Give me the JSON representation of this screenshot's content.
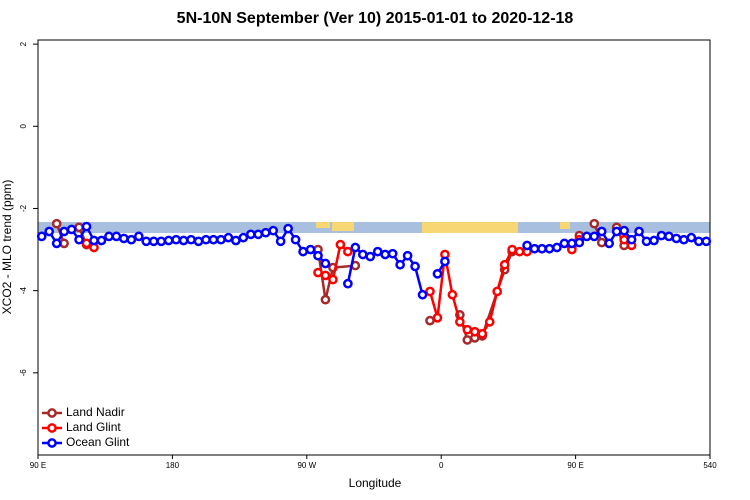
{
  "chart_data": {
    "type": "line",
    "title": "5N-10N September (Ver 10)   2015-01-01 to 2020-12-18",
    "x_label": "Longitude",
    "y_label": "XCO2 - MLO trend (ppm)",
    "xlim": [
      90,
      540
    ],
    "ylim": [
      -8,
      2.1
    ],
    "xticks": [
      {
        "value": 90,
        "label": "90 E"
      },
      180,
      {
        "value": 270,
        "label": "90 W"
      },
      {
        "value": 360,
        "label": "0"
      },
      {
        "value": 450,
        "label": "90 E"
      },
      540
    ],
    "yticks": [
      2,
      0,
      -2,
      -4,
      -6
    ],
    "legend_position": "bottomleft",
    "series": [
      {
        "name": "Land Nadir",
        "color": "#a52a2a",
        "x": [
          102.5,
          107.5,
          112.5,
          117.5,
          122.5,
          272.5,
          277.5,
          282.5,
          287.5,
          302.5,
          347.5,
          352.5,
          367.5,
          372.5,
          377.5,
          382.5,
          387.5,
          402.5,
          407.5,
          442.5,
          447.5,
          452.5,
          457.5,
          462.5,
          467.5,
          472.5,
          477.5,
          482.5
        ],
        "values": [
          -2.37,
          -2.85,
          null,
          -2.46,
          -2.88,
          null,
          -3.0,
          -4.22,
          -3.44,
          -3.39,
          null,
          -4.73,
          null,
          -4.59,
          -5.2,
          -5.15,
          -5.1,
          -3.49,
          -3.05,
          null,
          -2.95,
          -2.66,
          null,
          -2.37,
          -2.83,
          null,
          -2.46,
          -2.9
        ]
      },
      {
        "name": "Land Glint",
        "color": "#ff0000",
        "x": [
          122.5,
          127.5,
          272.5,
          277.5,
          282.5,
          287.5,
          292.5,
          297.5,
          347.5,
          352.5,
          357.5,
          362.5,
          367.5,
          372.5,
          377.5,
          382.5,
          387.5,
          392.5,
          397.5,
          402.5,
          407.5,
          412.5,
          417.5,
          442.5,
          447.5,
          452.5,
          477.5,
          482.5,
          487.5
        ],
        "values": [
          -2.85,
          -2.95,
          null,
          -3.56,
          -3.63,
          -3.73,
          -2.88,
          -3.05,
          null,
          -4.02,
          -4.66,
          -3.12,
          -4.1,
          -4.76,
          -4.95,
          -5.0,
          -5.05,
          -4.76,
          -4.02,
          -3.37,
          -3.0,
          -3.05,
          -3.05,
          null,
          -3.0,
          -2.76,
          null,
          -2.76,
          -2.9
        ]
      },
      {
        "name": "Ocean Glint",
        "color": "#0000ff",
        "x": [
          92.5,
          97.5,
          102.5,
          107.5,
          112.5,
          117.5,
          122.5,
          127.5,
          132.5,
          137.5,
          142.5,
          147.5,
          152.5,
          157.5,
          162.5,
          167.5,
          172.5,
          177.5,
          182.5,
          187.5,
          192.5,
          197.5,
          202.5,
          207.5,
          212.5,
          217.5,
          222.5,
          227.5,
          232.5,
          237.5,
          242.5,
          247.5,
          252.5,
          257.5,
          262.5,
          267.5,
          272.5,
          277.5,
          282.5,
          287.5,
          292.5,
          297.5,
          302.5,
          307.5,
          312.5,
          317.5,
          322.5,
          327.5,
          332.5,
          337.5,
          342.5,
          347.5,
          352.5,
          357.5,
          362.5,
          367.5,
          372.5,
          377.5,
          382.5,
          387.5,
          392.5,
          397.5,
          402.5,
          407.5,
          412.5,
          417.5,
          422.5,
          427.5,
          432.5,
          437.5,
          442.5,
          447.5,
          452.5,
          457.5,
          462.5,
          467.5,
          472.5,
          477.5,
          482.5,
          487.5,
          492.5,
          497.5,
          502.5,
          507.5,
          512.5,
          517.5,
          522.5,
          527.5,
          532.5,
          537.5
        ],
        "values": [
          -2.68,
          -2.56,
          -2.85,
          -2.56,
          -2.51,
          -2.76,
          -2.44,
          -2.78,
          -2.78,
          -2.68,
          -2.68,
          -2.73,
          -2.76,
          -2.68,
          -2.8,
          -2.8,
          -2.8,
          -2.78,
          -2.76,
          -2.78,
          -2.76,
          -2.8,
          -2.76,
          -2.76,
          -2.76,
          -2.71,
          -2.78,
          -2.71,
          -2.63,
          -2.63,
          -2.59,
          -2.54,
          -2.8,
          -2.49,
          -2.76,
          -3.05,
          -3.0,
          -3.15,
          -3.34,
          null,
          null,
          -3.83,
          -2.95,
          -3.12,
          -3.17,
          -3.05,
          -3.12,
          -3.1,
          -3.37,
          -3.15,
          -3.41,
          -4.1,
          null,
          -3.59,
          -3.29,
          null,
          null,
          null,
          null,
          null,
          null,
          null,
          null,
          null,
          null,
          -2.9,
          -2.98,
          -2.98,
          -2.98,
          -2.95,
          -2.85,
          -2.85,
          -2.83,
          -2.68,
          -2.68,
          -2.56,
          -2.85,
          -2.56,
          -2.54,
          -2.76,
          -2.56,
          -2.8,
          -2.78,
          -2.66,
          -2.68,
          -2.73,
          -2.76,
          -2.71,
          -2.8,
          -2.8
        ]
      }
    ]
  }
}
